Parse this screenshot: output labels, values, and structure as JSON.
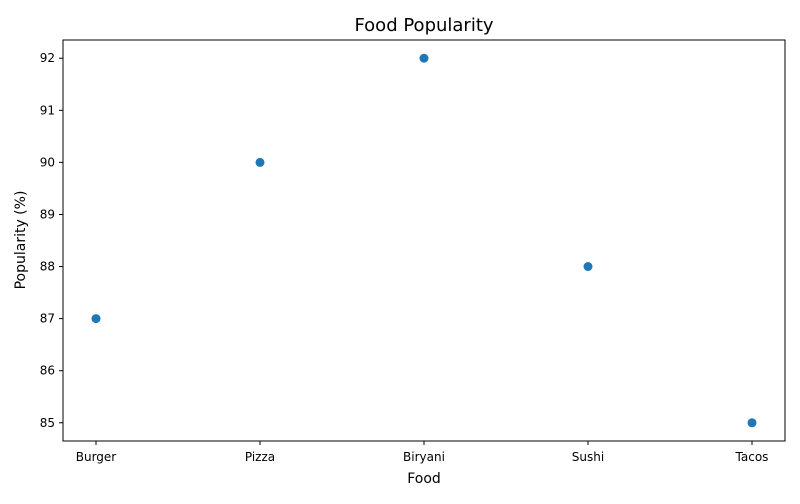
{
  "chart_data": {
    "type": "scatter",
    "title": "Food Popularity",
    "xlabel": "Food",
    "ylabel": "Popularity (%)",
    "categories": [
      "Burger",
      "Pizza",
      "Biryani",
      "Sushi",
      "Tacos"
    ],
    "values": [
      87,
      90,
      92,
      88,
      85
    ],
    "ylim": [
      84.65,
      92.35
    ],
    "yticks": [
      85,
      86,
      87,
      88,
      89,
      90,
      91,
      92
    ],
    "grid": false,
    "colors": {
      "point": "#1f77b4",
      "axis": "#000000",
      "background": "#ffffff"
    }
  }
}
